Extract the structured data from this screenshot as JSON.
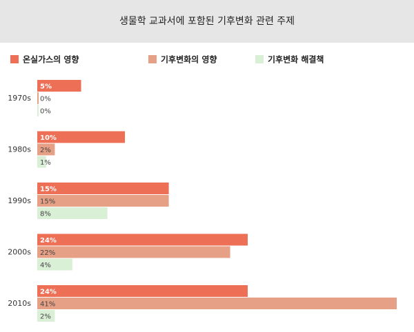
{
  "chart_data": {
    "type": "hbar",
    "title": "생물학 교과서에 포함된 기후변화 관련 주제",
    "categories": [
      "1970s",
      "1980s",
      "1990s",
      "2000s",
      "2010s"
    ],
    "series": [
      {
        "name": "온실가스의 영향",
        "color": "#ec6f56",
        "values": [
          5,
          10,
          15,
          24,
          24
        ],
        "value_labels": [
          "5%",
          "10%",
          "15%",
          "24%",
          "24%"
        ]
      },
      {
        "name": "기후변화의 영향",
        "color": "#e6a085",
        "values": [
          0,
          2,
          15,
          22,
          41
        ],
        "value_labels": [
          "0%",
          "2%",
          "15%",
          "22%",
          "41%"
        ]
      },
      {
        "name": "기후변화 해결책",
        "color": "#d9efd6",
        "values": [
          0,
          1,
          8,
          4,
          2
        ],
        "value_labels": [
          "0%",
          "1%",
          "8%",
          "4%",
          "2%"
        ]
      }
    ]
  }
}
